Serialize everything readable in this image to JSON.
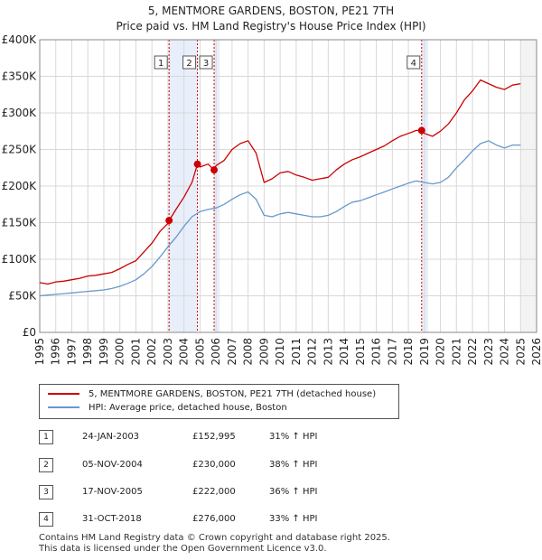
{
  "title": "5, MENTMORE GARDENS, BOSTON, PE21 7TH",
  "subtitle": "Price paid vs. HM Land Registry's House Price Index (HPI)",
  "colors": {
    "property": "#cc0000",
    "hpi": "#6699cc",
    "sale_band": "#e8eefa",
    "sale_line": "#cc0000",
    "grid": "#d8d8d8"
  },
  "legend": {
    "property_label": "5, MENTMORE GARDENS, BOSTON, PE21 7TH (detached house)",
    "hpi_label": "HPI: Average price, detached house, Boston"
  },
  "sales": [
    {
      "num": "1",
      "date": "24-JAN-2003",
      "price": "£152,995",
      "hpi_change": "31% ↑ HPI"
    },
    {
      "num": "2",
      "date": "05-NOV-2004",
      "price": "£230,000",
      "hpi_change": "38% ↑ HPI"
    },
    {
      "num": "3",
      "date": "17-NOV-2005",
      "price": "£222,000",
      "hpi_change": "36% ↑ HPI"
    },
    {
      "num": "4",
      "date": "31-OCT-2018",
      "price": "£276,000",
      "hpi_change": "33% ↑ HPI"
    }
  ],
  "footer": {
    "line1": "Contains HM Land Registry data © Crown copyright and database right 2025.",
    "line2": "This data is licensed under the Open Government Licence v3.0."
  },
  "chart_data": {
    "type": "line",
    "title": "5, MENTMORE GARDENS, BOSTON, PE21 7TH",
    "subtitle": "Price paid vs. HM Land Registry's House Price Index (HPI)",
    "xlabel": "",
    "ylabel": "",
    "xlim": [
      1995,
      2026
    ],
    "ylim": [
      0,
      400000
    ],
    "x_ticks": [
      1995,
      1996,
      1997,
      1998,
      1999,
      2000,
      2001,
      2002,
      2003,
      2004,
      2005,
      2006,
      2007,
      2008,
      2009,
      2010,
      2011,
      2012,
      2013,
      2014,
      2015,
      2016,
      2017,
      2018,
      2019,
      2020,
      2021,
      2022,
      2023,
      2024,
      2025,
      2026
    ],
    "y_ticks": [
      {
        "value": 0,
        "label": "£0"
      },
      {
        "value": 50000,
        "label": "£50K"
      },
      {
        "value": 100000,
        "label": "£100K"
      },
      {
        "value": 150000,
        "label": "£150K"
      },
      {
        "value": 200000,
        "label": "£200K"
      },
      {
        "value": 250000,
        "label": "£250K"
      },
      {
        "value": 300000,
        "label": "£300K"
      },
      {
        "value": 350000,
        "label": "£350K"
      },
      {
        "value": 400000,
        "label": "£400K"
      }
    ],
    "grid": true,
    "forecast_from": 2025.0,
    "sale_markers": [
      {
        "label": "1",
        "x": 2003.07,
        "y": 152995
      },
      {
        "label": "2",
        "x": 2004.84,
        "y": 230000
      },
      {
        "label": "3",
        "x": 2005.88,
        "y": 222000
      },
      {
        "label": "4",
        "x": 2018.83,
        "y": 276000
      }
    ],
    "series": [
      {
        "name": "5, MENTMORE GARDENS, BOSTON, PE21 7TH (detached house)",
        "x": [
          1995.0,
          1995.5,
          1996.0,
          1996.5,
          1997.0,
          1997.5,
          1998.0,
          1998.5,
          1999.0,
          1999.5,
          2000.0,
          2000.5,
          2001.0,
          2001.5,
          2002.0,
          2002.5,
          2003.0,
          2003.07,
          2003.5,
          2004.0,
          2004.5,
          2004.84,
          2005.0,
          2005.5,
          2005.88,
          2006.0,
          2006.5,
          2007.0,
          2007.5,
          2008.0,
          2008.5,
          2009.0,
          2009.5,
          2010.0,
          2010.5,
          2011.0,
          2011.5,
          2012.0,
          2012.5,
          2013.0,
          2013.5,
          2014.0,
          2014.5,
          2015.0,
          2015.5,
          2016.0,
          2016.5,
          2017.0,
          2017.5,
          2018.0,
          2018.5,
          2018.83,
          2019.0,
          2019.5,
          2020.0,
          2020.5,
          2021.0,
          2021.5,
          2022.0,
          2022.5,
          2023.0,
          2023.5,
          2024.0,
          2024.5,
          2025.0
        ],
        "y": [
          68000,
          66000,
          69000,
          70000,
          72000,
          74000,
          77000,
          78000,
          80000,
          82000,
          87000,
          93000,
          98000,
          110000,
          122000,
          138000,
          149000,
          152995,
          168000,
          185000,
          205000,
          230000,
          226000,
          230000,
          222000,
          228000,
          235000,
          250000,
          258000,
          262000,
          245000,
          205000,
          210000,
          218000,
          220000,
          215000,
          212000,
          208000,
          210000,
          212000,
          222000,
          230000,
          236000,
          240000,
          245000,
          250000,
          255000,
          262000,
          268000,
          272000,
          276000,
          276000,
          272000,
          268000,
          275000,
          285000,
          300000,
          318000,
          330000,
          345000,
          340000,
          335000,
          332000,
          338000,
          340000
        ]
      },
      {
        "name": "HPI: Average price, detached house, Boston",
        "x": [
          1995.0,
          1995.5,
          1996.0,
          1996.5,
          1997.0,
          1997.5,
          1998.0,
          1998.5,
          1999.0,
          1999.5,
          2000.0,
          2000.5,
          2001.0,
          2001.5,
          2002.0,
          2002.5,
          2003.0,
          2003.5,
          2004.0,
          2004.5,
          2005.0,
          2005.5,
          2006.0,
          2006.5,
          2007.0,
          2007.5,
          2008.0,
          2008.5,
          2009.0,
          2009.5,
          2010.0,
          2010.5,
          2011.0,
          2011.5,
          2012.0,
          2012.5,
          2013.0,
          2013.5,
          2014.0,
          2014.5,
          2015.0,
          2015.5,
          2016.0,
          2016.5,
          2017.0,
          2017.5,
          2018.0,
          2018.5,
          2019.0,
          2019.5,
          2020.0,
          2020.5,
          2021.0,
          2021.5,
          2022.0,
          2022.5,
          2023.0,
          2023.5,
          2024.0,
          2024.5,
          2025.0
        ],
        "y": [
          50000,
          51000,
          52000,
          53000,
          54000,
          55000,
          56000,
          57000,
          58000,
          60000,
          63000,
          67000,
          72000,
          80000,
          90000,
          103000,
          117000,
          130000,
          145000,
          158000,
          165000,
          168000,
          170000,
          175000,
          182000,
          188000,
          192000,
          182000,
          160000,
          158000,
          162000,
          164000,
          162000,
          160000,
          158000,
          158000,
          160000,
          165000,
          172000,
          178000,
          180000,
          184000,
          188000,
          192000,
          196000,
          200000,
          204000,
          207000,
          205000,
          203000,
          205000,
          212000,
          225000,
          236000,
          248000,
          258000,
          262000,
          256000,
          252000,
          256000,
          256000
        ]
      }
    ]
  }
}
